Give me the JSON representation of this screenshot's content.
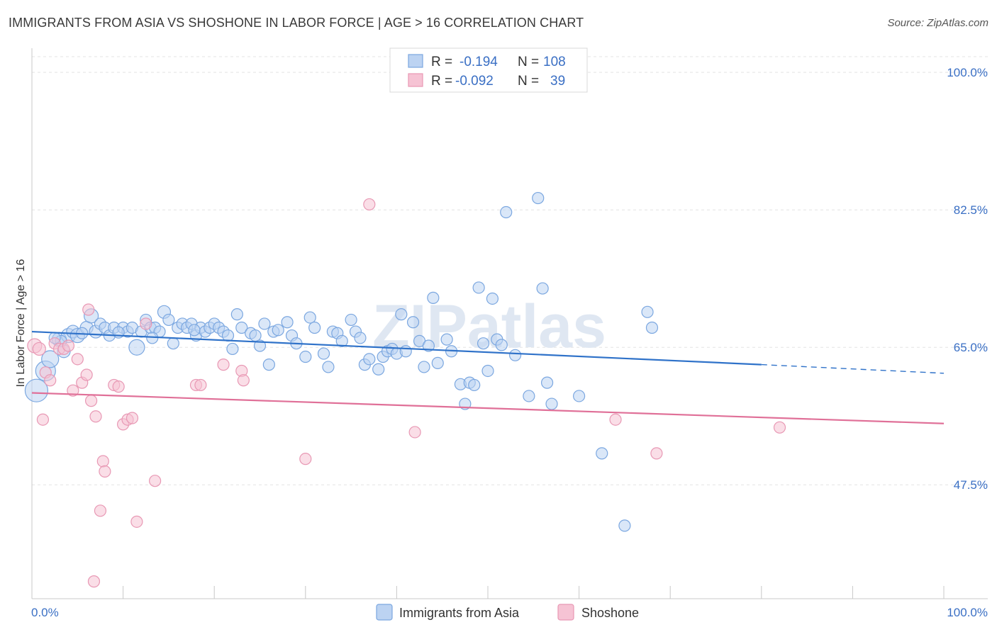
{
  "header": {
    "title": "IMMIGRANTS FROM ASIA VS SHOSHONE IN LABOR FORCE | AGE > 16 CORRELATION CHART",
    "source": "Source: ZipAtlas.com"
  },
  "watermark": "ZIPatlas",
  "chart_data": {
    "type": "scatter",
    "title": "IMMIGRANTS FROM ASIA VS SHOSHONE IN LABOR FORCE | AGE > 16 CORRELATION CHART",
    "xlabel": "",
    "ylabel": "In Labor Force | Age > 16",
    "xlim": [
      0,
      100
    ],
    "ylim": [
      33,
      102
    ],
    "x_tick_labels": {
      "left": "0.0%",
      "right": "100.0%"
    },
    "y_ticks": [
      {
        "value": 100.0,
        "label": "100.0%"
      },
      {
        "value": 82.5,
        "label": "82.5%"
      },
      {
        "value": 65.0,
        "label": "65.0%"
      },
      {
        "value": 47.5,
        "label": "47.5%"
      }
    ],
    "legend": {
      "placement": "top-center",
      "rows": [
        {
          "r_label": "R =",
          "r_value": "-0.194",
          "n_label": "N =",
          "n_value": "108"
        },
        {
          "r_label": "R =",
          "r_value": "-0.092",
          "n_label": "N =",
          "n_value": "39"
        }
      ]
    },
    "series": [
      {
        "name": "Immigrants from Asia",
        "color": "#7ba7e0",
        "fill": "#bcd3f2",
        "line_color": "#2f72c9",
        "trend": {
          "x0": 0,
          "y0": 67.0,
          "x1": 80,
          "y1": 62.8,
          "dash_to_x": 100,
          "dash_to_y": 61.7
        },
        "points": [
          [
            0.5,
            59.5,
            16
          ],
          [
            1.5,
            62,
            14
          ],
          [
            2,
            63.5,
            12
          ],
          [
            3,
            66,
            10
          ],
          [
            3.5,
            64.5,
            9
          ],
          [
            4,
            66.5,
            10
          ],
          [
            4.5,
            67,
            9
          ],
          [
            5,
            66.5,
            10
          ],
          [
            6,
            67.5,
            9
          ],
          [
            6.5,
            69,
            10
          ],
          [
            7,
            67,
            9
          ],
          [
            7.5,
            68,
            8
          ],
          [
            8,
            67.5,
            8
          ],
          [
            8.5,
            66.5,
            8
          ],
          [
            9,
            67.5,
            8
          ],
          [
            10,
            67.5,
            8
          ],
          [
            10.5,
            67,
            8
          ],
          [
            11,
            67.5,
            8
          ],
          [
            11.5,
            65,
            11
          ],
          [
            12,
            67,
            8
          ],
          [
            12.5,
            68.5,
            8
          ],
          [
            13,
            67.5,
            8
          ],
          [
            13.5,
            67.5,
            8
          ],
          [
            14,
            67,
            8
          ],
          [
            14.5,
            69.5,
            9
          ],
          [
            15,
            68.5,
            8
          ],
          [
            15.5,
            65.5,
            8
          ],
          [
            16,
            67.5,
            8
          ],
          [
            16.5,
            68,
            8
          ],
          [
            17,
            67.5,
            8
          ],
          [
            17.5,
            68,
            8
          ],
          [
            18,
            66.5,
            8
          ],
          [
            18.5,
            67.5,
            8
          ],
          [
            19,
            67,
            8
          ],
          [
            19.5,
            67.5,
            8
          ],
          [
            20,
            68,
            8
          ],
          [
            20.5,
            67.5,
            8
          ],
          [
            21,
            67,
            8
          ],
          [
            21.5,
            66.5,
            8
          ],
          [
            22,
            64.8,
            8
          ],
          [
            22.5,
            69.2,
            8
          ],
          [
            23,
            67.5,
            8
          ],
          [
            24,
            66.8,
            8
          ],
          [
            24.5,
            66.5,
            8
          ],
          [
            25,
            65.2,
            8
          ],
          [
            25.5,
            68,
            8
          ],
          [
            26,
            62.8,
            8
          ],
          [
            26.5,
            67,
            8
          ],
          [
            27,
            67.2,
            8
          ],
          [
            28,
            68.2,
            8
          ],
          [
            28.5,
            66.5,
            8
          ],
          [
            29,
            65.5,
            8
          ],
          [
            30,
            63.8,
            8
          ],
          [
            30.5,
            68.8,
            8
          ],
          [
            31,
            67.5,
            8
          ],
          [
            32,
            64.2,
            8
          ],
          [
            32.5,
            62.5,
            8
          ],
          [
            33,
            67,
            8
          ],
          [
            33.5,
            66.8,
            8
          ],
          [
            34,
            65.8,
            8
          ],
          [
            35,
            68.5,
            8
          ],
          [
            35.5,
            67,
            8
          ],
          [
            36,
            66.2,
            8
          ],
          [
            36.5,
            62.8,
            8
          ],
          [
            37,
            63.5,
            8
          ],
          [
            38,
            62.2,
            8
          ],
          [
            38.5,
            63.8,
            8
          ],
          [
            39,
            64.5,
            8
          ],
          [
            39.5,
            64.8,
            8
          ],
          [
            40,
            64.2,
            8
          ],
          [
            40.5,
            69.2,
            8
          ],
          [
            41,
            64.5,
            8
          ],
          [
            41.8,
            68.2,
            8
          ],
          [
            42.5,
            65.8,
            8
          ],
          [
            43,
            62.5,
            8
          ],
          [
            43.5,
            65.2,
            8
          ],
          [
            44,
            71.3,
            8
          ],
          [
            44.5,
            63,
            8
          ],
          [
            45.5,
            66,
            8
          ],
          [
            46,
            64.5,
            8
          ],
          [
            47,
            60.3,
            8
          ],
          [
            47.5,
            57.8,
            8
          ],
          [
            48,
            60.5,
            8
          ],
          [
            48.5,
            60.2,
            8
          ],
          [
            49,
            72.6,
            8
          ],
          [
            49.5,
            65.5,
            8
          ],
          [
            50,
            62,
            8
          ],
          [
            50.5,
            71.2,
            8
          ],
          [
            51,
            66,
            8
          ],
          [
            51.5,
            65.3,
            8
          ],
          [
            52,
            82.2,
            8
          ],
          [
            53,
            64,
            8
          ],
          [
            54.5,
            58.8,
            8
          ],
          [
            55.5,
            84,
            8
          ],
          [
            56,
            72.5,
            8
          ],
          [
            56.5,
            60.5,
            8
          ],
          [
            57,
            57.8,
            8
          ],
          [
            60,
            58.8,
            8
          ],
          [
            62.5,
            51.5,
            8
          ],
          [
            65,
            42.3,
            8
          ],
          [
            67.5,
            69.5,
            8
          ],
          [
            68,
            67.5,
            8
          ],
          [
            3.2,
            65.8,
            8
          ],
          [
            2.5,
            66.2,
            8
          ],
          [
            5.5,
            66.8,
            8
          ],
          [
            9.5,
            66.9,
            8
          ],
          [
            13.2,
            66.2,
            8
          ],
          [
            17.8,
            67.2,
            8
          ]
        ]
      },
      {
        "name": "Shoshone",
        "color": "#e898b4",
        "fill": "#f6c3d4",
        "line_color": "#e07098",
        "trend": {
          "x0": 0,
          "y0": 59.2,
          "x1": 100,
          "y1": 55.3
        },
        "points": [
          [
            0.3,
            65.2,
            10
          ],
          [
            0.8,
            64.8,
            9
          ],
          [
            1.2,
            55.8,
            8
          ],
          [
            1.5,
            61.8,
            8
          ],
          [
            2,
            60.8,
            8
          ],
          [
            2.5,
            65.5,
            8
          ],
          [
            3,
            64.8,
            8
          ],
          [
            3.5,
            64.8,
            8
          ],
          [
            4,
            65.2,
            8
          ],
          [
            4.5,
            59.5,
            8
          ],
          [
            5,
            63.5,
            8
          ],
          [
            5.5,
            60.5,
            8
          ],
          [
            6,
            61.5,
            8
          ],
          [
            6.2,
            69.8,
            8
          ],
          [
            6.5,
            58.2,
            8
          ],
          [
            7,
            56.2,
            8
          ],
          [
            7.5,
            44.2,
            8
          ],
          [
            7.8,
            50.5,
            8
          ],
          [
            8,
            49.2,
            8
          ],
          [
            6.8,
            35.2,
            8
          ],
          [
            9,
            60.2,
            8
          ],
          [
            9.5,
            60,
            8
          ],
          [
            10,
            55.2,
            8
          ],
          [
            10.5,
            55.8,
            8
          ],
          [
            11,
            56,
            8
          ],
          [
            11.5,
            42.8,
            8
          ],
          [
            12.5,
            68,
            8
          ],
          [
            13.5,
            48,
            8
          ],
          [
            18,
            60.2,
            8
          ],
          [
            18.5,
            60.2,
            8
          ],
          [
            21,
            62.8,
            8
          ],
          [
            23,
            62,
            8
          ],
          [
            23.2,
            60.8,
            8
          ],
          [
            30,
            50.8,
            8
          ],
          [
            37,
            83.2,
            8
          ],
          [
            42,
            54.2,
            8
          ],
          [
            64,
            55.8,
            8
          ],
          [
            68.5,
            51.5,
            8
          ],
          [
            82,
            54.8,
            8
          ]
        ]
      }
    ]
  }
}
